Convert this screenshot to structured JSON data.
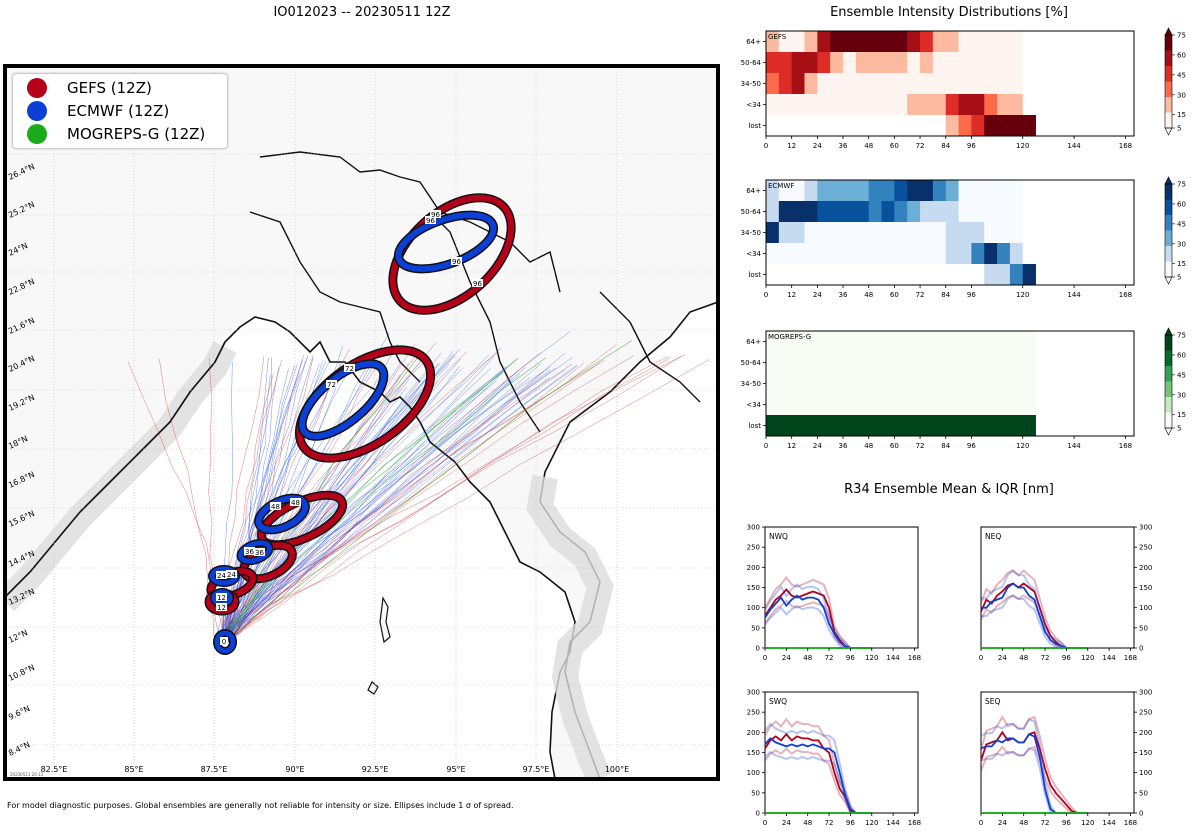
{
  "map": {
    "title": "IO012023 -- 20230511 12Z",
    "footnote": "For model diagnostic purposes. Global ensembles are generally not reliable for intensity or size. Ellipses include 1 σ of spread.",
    "stamp": "20230511 20:13",
    "legend": [
      {
        "label": "GEFS (12Z)",
        "color": "#b5001a"
      },
      {
        "label": "ECMWF (12Z)",
        "color": "#0b3fd6"
      },
      {
        "label": "MOGREPS-G (12Z)",
        "color": "#1aab1a"
      }
    ],
    "lat_labels": [
      "8.4°N",
      "9.6°N",
      "10.8°N",
      "12°N",
      "13.2°N",
      "14.4°N",
      "15.6°N",
      "16.8°N",
      "18°N",
      "19.2°N",
      "20.4°N",
      "21.6°N",
      "22.8°N",
      "24°N",
      "25.2°N",
      "26.4°N"
    ],
    "lon_labels": [
      "82.5°E",
      "85°E",
      "87.5°E",
      "90°E",
      "92.5°E",
      "95°E",
      "97.5°E",
      "100°E"
    ],
    "gefs_track_labels": [
      "12",
      "24",
      "36",
      "48",
      "72",
      "96"
    ],
    "ecmwf_track_labels": [
      "0",
      "12",
      "24",
      "36",
      "48",
      "72",
      "96",
      "96"
    ]
  },
  "intensity": {
    "title": "Ensemble Intensity Distributions [%]",
    "rows": [
      "64+",
      "50-64",
      "34-50",
      "<34",
      "lost"
    ],
    "x_ticks": [
      "0",
      "12",
      "24",
      "36",
      "48",
      "60",
      "72",
      "84",
      "96",
      "120",
      "144",
      "168"
    ],
    "colorbar_ticks": [
      "75",
      "60",
      "45",
      "30",
      "15",
      "5"
    ],
    "panels": [
      {
        "name": "GEFS",
        "cmap": [
          "#fff5f0",
          "#fcbba1",
          "#fb6a4a",
          "#de2d26",
          "#a50f15",
          "#67000d"
        ]
      },
      {
        "name": "ECMWF",
        "cmap": [
          "#f7fbff",
          "#c6dbef",
          "#6baed6",
          "#3182bd",
          "#08519c",
          "#08306b"
        ]
      },
      {
        "name": "MOGREPS-G",
        "cmap": [
          "#f7fcf5",
          "#c7e9c0",
          "#74c476",
          "#31a354",
          "#006d2c",
          "#00441b"
        ]
      }
    ]
  },
  "r34": {
    "title": "R34 Ensemble Mean & IQR [nm]",
    "y_ticks": [
      "0",
      "50",
      "100",
      "150",
      "200",
      "250",
      "300"
    ],
    "x_ticks": [
      "0",
      "24",
      "48",
      "72",
      "96",
      "120",
      "144",
      "168"
    ],
    "quadrants": [
      "NWQ",
      "NEQ",
      "SWQ",
      "SEQ"
    ]
  },
  "chart_data": [
    {
      "type": "heatmap",
      "title": "Ensemble Intensity Distributions [%] - GEFS",
      "x_hours": [
        0,
        6,
        12,
        18,
        24,
        30,
        36,
        42,
        48,
        54,
        60,
        66,
        72,
        78,
        84,
        90,
        96,
        102,
        108,
        114,
        120
      ],
      "rows": [
        "64+",
        "50-64",
        "34-50",
        "<34",
        "lost"
      ],
      "values": [
        [
          20,
          5,
          5,
          10,
          60,
          75,
          75,
          75,
          75,
          75,
          75,
          65,
          45,
          20,
          20,
          5,
          3,
          3,
          3,
          3,
          0
        ],
        [
          50,
          40,
          60,
          60,
          50,
          20,
          5,
          20,
          20,
          20,
          20,
          5,
          10,
          5,
          5,
          3,
          3,
          3,
          3,
          3,
          0
        ],
        [
          25,
          45,
          60,
          20,
          5,
          3,
          3,
          3,
          3,
          3,
          3,
          3,
          3,
          3,
          3,
          3,
          3,
          3,
          3,
          3,
          0
        ],
        [
          5,
          5,
          5,
          5,
          5,
          3,
          3,
          3,
          3,
          3,
          3,
          10,
          10,
          20,
          50,
          55,
          60,
          30,
          20,
          15,
          0
        ],
        [
          0,
          0,
          0,
          0,
          0,
          0,
          0,
          0,
          0,
          0,
          0,
          0,
          0,
          0,
          15,
          25,
          45,
          75,
          75,
          75,
          75
        ]
      ],
      "ylim": [
        0,
        75
      ]
    },
    {
      "type": "heatmap",
      "title": "Ensemble Intensity Distributions [%] - ECMWF",
      "x_hours": [
        0,
        6,
        12,
        18,
        24,
        30,
        36,
        42,
        48,
        54,
        60,
        66,
        72,
        78,
        84,
        90,
        96,
        102,
        108,
        114,
        120
      ],
      "rows": [
        "64+",
        "50-64",
        "34-50",
        "<34",
        "lost"
      ],
      "values": [
        [
          15,
          5,
          5,
          15,
          30,
          30,
          30,
          30,
          50,
          40,
          55,
          75,
          75,
          50,
          30,
          3,
          3,
          3,
          3,
          3,
          0
        ],
        [
          20,
          70,
          70,
          70,
          60,
          60,
          60,
          60,
          50,
          60,
          40,
          30,
          20,
          10,
          15,
          5,
          3,
          3,
          3,
          3,
          0
        ],
        [
          75,
          20,
          10,
          5,
          3,
          3,
          3,
          3,
          3,
          3,
          3,
          3,
          3,
          3,
          20,
          10,
          10,
          5,
          3,
          3,
          0
        ],
        [
          3,
          3,
          3,
          3,
          3,
          3,
          3,
          3,
          3,
          3,
          3,
          3,
          3,
          3,
          15,
          20,
          50,
          75,
          45,
          20,
          0
        ],
        [
          0,
          0,
          0,
          0,
          0,
          0,
          0,
          0,
          0,
          0,
          0,
          0,
          0,
          0,
          0,
          0,
          0,
          10,
          20,
          50,
          75
        ]
      ],
      "ylim": [
        0,
        75
      ]
    },
    {
      "type": "heatmap",
      "title": "Ensemble Intensity Distributions [%] - MOGREPS-G",
      "x_hours": [
        0,
        6,
        12,
        18,
        24,
        30,
        36,
        42,
        48,
        54,
        60,
        66,
        72,
        78,
        84,
        90,
        96,
        102,
        108,
        114,
        120
      ],
      "rows": [
        "64+",
        "50-64",
        "34-50",
        "<34",
        "lost"
      ],
      "values": [
        [
          1,
          1,
          1,
          1,
          1,
          1,
          1,
          1,
          1,
          1,
          1,
          1,
          1,
          1,
          1,
          1,
          1,
          1,
          1,
          1,
          1
        ],
        [
          1,
          1,
          1,
          1,
          1,
          1,
          1,
          1,
          1,
          1,
          1,
          1,
          1,
          1,
          1,
          1,
          1,
          1,
          1,
          1,
          1
        ],
        [
          1,
          1,
          1,
          1,
          1,
          1,
          1,
          1,
          1,
          1,
          1,
          1,
          1,
          1,
          1,
          1,
          1,
          1,
          1,
          1,
          1
        ],
        [
          1,
          1,
          1,
          1,
          1,
          1,
          1,
          1,
          1,
          1,
          1,
          1,
          1,
          1,
          1,
          1,
          1,
          1,
          1,
          1,
          1
        ],
        [
          75,
          75,
          75,
          75,
          75,
          75,
          75,
          75,
          75,
          75,
          75,
          75,
          75,
          75,
          75,
          75,
          75,
          75,
          75,
          75,
          75
        ]
      ],
      "ylim": [
        0,
        75
      ]
    },
    {
      "type": "line",
      "title": "R34 Ensemble Mean & IQR [nm] - NWQ",
      "x": [
        0,
        6,
        12,
        18,
        24,
        30,
        36,
        42,
        48,
        54,
        60,
        66,
        72,
        78,
        84,
        90,
        96,
        102,
        108,
        114,
        120
      ],
      "series": [
        {
          "name": "GEFS",
          "values": [
            80,
            100,
            120,
            130,
            145,
            130,
            125,
            130,
            135,
            140,
            135,
            130,
            100,
            40,
            20,
            5,
            0,
            0,
            0,
            0,
            0
          ]
        },
        {
          "name": "ECMWF",
          "values": [
            75,
            95,
            110,
            125,
            105,
            120,
            130,
            120,
            125,
            125,
            120,
            100,
            60,
            35,
            15,
            5,
            0,
            0,
            0,
            0,
            0
          ]
        },
        {
          "name": "MOGREPS-G",
          "values": [
            0,
            0,
            0,
            0,
            0,
            0,
            0,
            0,
            0,
            0,
            0,
            0,
            0,
            0,
            0,
            0,
            0,
            0,
            0,
            0,
            0
          ]
        }
      ],
      "xlim": [
        0,
        172
      ],
      "ylim": [
        0,
        300
      ]
    },
    {
      "type": "line",
      "title": "R34 Ensemble Mean & IQR [nm] - NEQ",
      "x": [
        0,
        6,
        12,
        18,
        24,
        30,
        36,
        42,
        48,
        54,
        60,
        66,
        72,
        78,
        84,
        90,
        96,
        102,
        108,
        114,
        120
      ],
      "series": [
        {
          "name": "GEFS",
          "values": [
            90,
            120,
            110,
            130,
            140,
            155,
            160,
            150,
            160,
            150,
            140,
            100,
            60,
            30,
            15,
            5,
            0,
            0,
            0,
            0,
            0
          ]
        },
        {
          "name": "ECMWF",
          "values": [
            100,
            100,
            115,
            120,
            125,
            150,
            160,
            150,
            150,
            130,
            120,
            80,
            40,
            20,
            10,
            5,
            0,
            0,
            0,
            0,
            0
          ]
        },
        {
          "name": "MOGREPS-G",
          "values": [
            0,
            0,
            0,
            0,
            0,
            0,
            0,
            0,
            0,
            0,
            0,
            0,
            0,
            0,
            0,
            0,
            0,
            0,
            0,
            0,
            0
          ]
        }
      ],
      "xlim": [
        0,
        172
      ],
      "ylim": [
        0,
        300
      ]
    },
    {
      "type": "line",
      "title": "R34 Ensemble Mean & IQR [nm] - SWQ",
      "x": [
        0,
        6,
        12,
        18,
        24,
        30,
        36,
        42,
        48,
        54,
        60,
        66,
        72,
        78,
        84,
        90,
        96,
        102,
        108,
        114,
        120
      ],
      "series": [
        {
          "name": "GEFS",
          "values": [
            160,
            180,
            190,
            180,
            195,
            180,
            190,
            185,
            185,
            180,
            180,
            160,
            150,
            100,
            60,
            40,
            5,
            0,
            0,
            0,
            0
          ]
        },
        {
          "name": "ECMWF",
          "values": [
            170,
            185,
            175,
            170,
            165,
            170,
            165,
            170,
            165,
            170,
            165,
            160,
            160,
            150,
            100,
            45,
            10,
            0,
            0,
            0,
            0
          ]
        },
        {
          "name": "MOGREPS-G",
          "values": [
            0,
            0,
            0,
            0,
            0,
            0,
            0,
            0,
            0,
            0,
            0,
            0,
            0,
            0,
            0,
            0,
            0,
            0,
            0,
            0,
            0
          ]
        }
      ],
      "xlim": [
        0,
        172
      ],
      "ylim": [
        0,
        300
      ]
    },
    {
      "type": "line",
      "title": "R34 Ensemble Mean & IQR [nm] - SEQ",
      "x": [
        0,
        6,
        12,
        18,
        24,
        30,
        36,
        42,
        48,
        54,
        60,
        66,
        72,
        78,
        84,
        90,
        96,
        102,
        108,
        114,
        120
      ],
      "series": [
        {
          "name": "GEFS",
          "values": [
            130,
            170,
            175,
            180,
            200,
            180,
            185,
            175,
            175,
            195,
            200,
            160,
            110,
            70,
            50,
            35,
            20,
            5,
            0,
            0,
            0
          ]
        },
        {
          "name": "ECMWF",
          "values": [
            160,
            165,
            165,
            180,
            175,
            185,
            185,
            175,
            175,
            195,
            190,
            140,
            60,
            10,
            0,
            0,
            0,
            0,
            0,
            0,
            0
          ]
        },
        {
          "name": "MOGREPS-G",
          "values": [
            0,
            0,
            0,
            0,
            0,
            0,
            0,
            0,
            0,
            0,
            0,
            0,
            0,
            0,
            0,
            0,
            0,
            0,
            0,
            0,
            0
          ]
        }
      ],
      "xlim": [
        0,
        172
      ],
      "ylim": [
        0,
        300
      ]
    }
  ]
}
